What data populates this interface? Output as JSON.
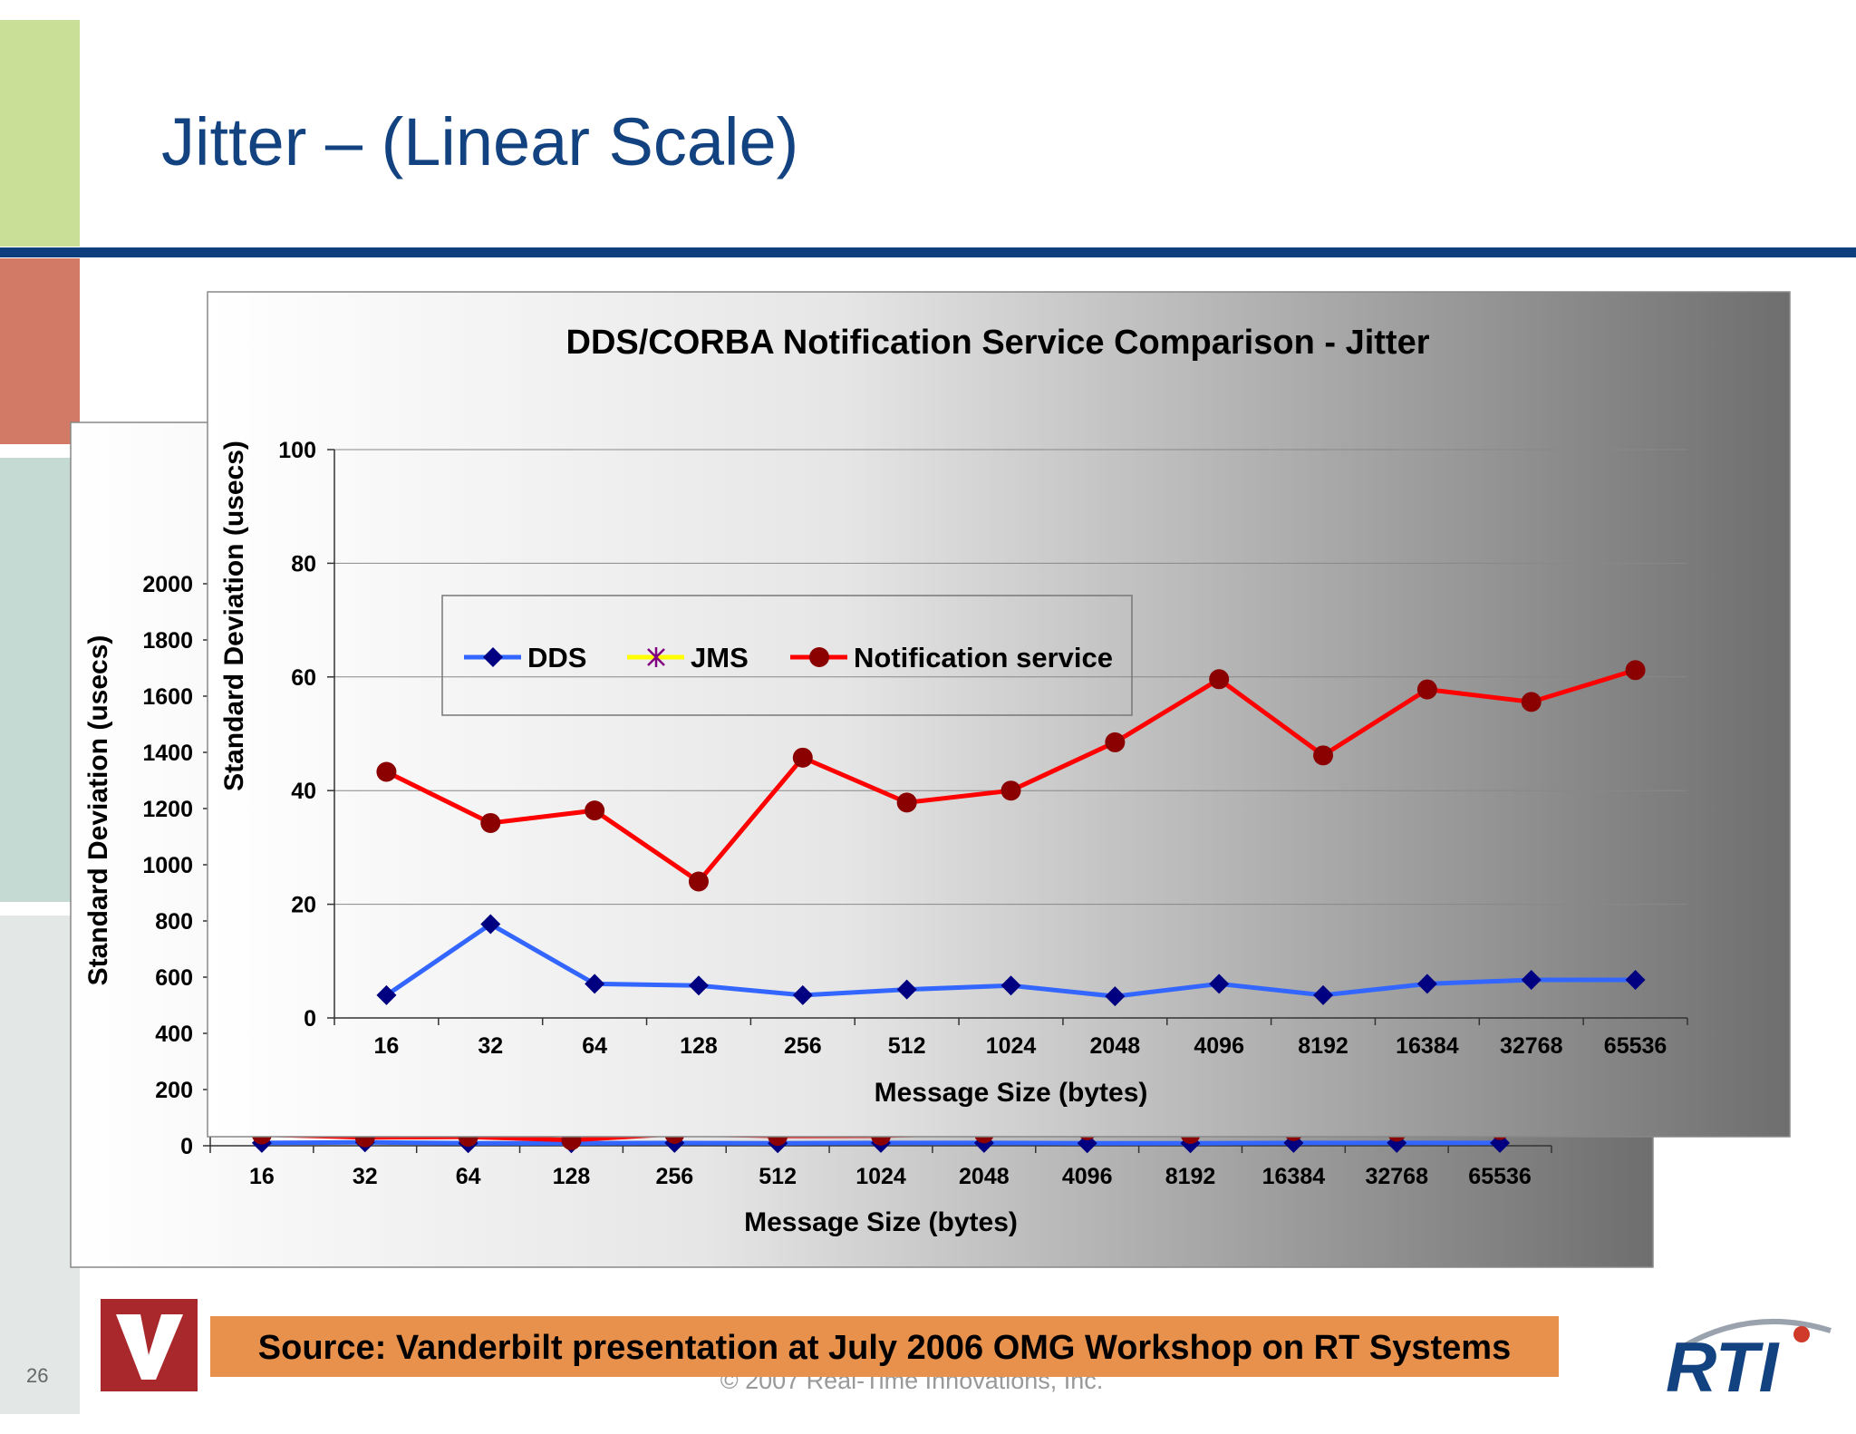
{
  "slide_title": "Jitter – (Linear Scale)",
  "page_number": "26",
  "copyright": "© 2007 Real-Time Innovations, Inc.",
  "source": "Source: Vanderbilt presentation at July 2006 OMG Workshop on RT Systems",
  "logo_text": "RTI",
  "chart_data": [
    {
      "type": "line",
      "x_label": "Message Size (bytes)",
      "y_label": "Standard Deviation (usecs)",
      "categories": [
        "16",
        "32",
        "64",
        "128",
        "256",
        "512",
        "1024",
        "2048",
        "4096",
        "8192",
        "16384",
        "32768",
        "65536"
      ],
      "series": [
        {
          "name": "DDS",
          "color": "#3366ff",
          "marker": "diamond",
          "marker_color": "#000080",
          "values": [
            10,
            12,
            9,
            9,
            10,
            9,
            10,
            10,
            9,
            9,
            10,
            10,
            10
          ]
        },
        {
          "name": "Notification service",
          "color": "#ff0000",
          "marker": "circle",
          "marker_color": "#8b0000",
          "values": [
            40,
            30,
            32,
            20,
            42,
            35,
            36,
            44,
            55,
            42,
            52,
            50,
            56
          ]
        }
      ],
      "ylim": [
        0,
        2000
      ],
      "yticks": [
        0,
        200,
        400,
        600,
        800,
        1000,
        1200,
        1400,
        1600,
        1800,
        2000
      ],
      "grid": false
    },
    {
      "type": "line",
      "title": "DDS/CORBA Notification Service Comparison - Jitter",
      "x_label": "Message Size (bytes)",
      "y_label": "Standard Deviation (usecs)",
      "categories": [
        "16",
        "32",
        "64",
        "128",
        "256",
        "512",
        "1024",
        "2048",
        "4096",
        "8192",
        "16384",
        "32768",
        "65536"
      ],
      "series": [
        {
          "name": "DDS",
          "color": "#3366ff",
          "marker": "diamond",
          "marker_color": "#000080",
          "values": [
            4,
            16.5,
            6,
            5.7,
            4,
            5,
            5.7,
            3.8,
            6,
            4,
            6,
            6.7,
            6.7
          ]
        },
        {
          "name": "JMS",
          "color": "#ffff00",
          "marker": "star",
          "marker_color": "#800080",
          "values": [
            null,
            null,
            null,
            null,
            null,
            null,
            null,
            null,
            null,
            null,
            null,
            null,
            null
          ]
        },
        {
          "name": "Notification service",
          "color": "#ff0000",
          "marker": "circle",
          "marker_color": "#8b0000",
          "values": [
            43.3,
            34.3,
            36.5,
            24,
            45.8,
            37.9,
            40,
            48.5,
            59.6,
            46.2,
            57.8,
            55.6,
            61.2
          ]
        }
      ],
      "ylim": [
        0,
        100
      ],
      "yticks": [
        0,
        20,
        40,
        60,
        80,
        100
      ],
      "grid": true,
      "legend": "upper left"
    }
  ]
}
